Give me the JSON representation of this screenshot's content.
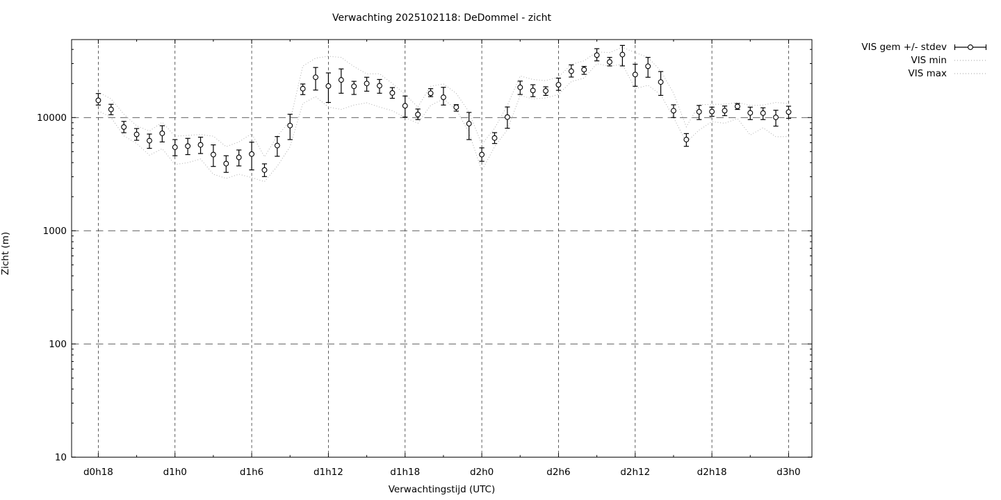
{
  "title": "Verwachting 2025102118: DeDommel - zicht",
  "axes": {
    "xlabel": "Verwachtingstijd (UTC)",
    "ylabel": "Zicht (m)"
  },
  "chart_data": {
    "type": "line",
    "subtype": "errorbars-with-min-max-envelope",
    "title": "Verwachting 2025102118: DeDommel - zicht",
    "xlabel": "Verwachtingstijd (UTC)",
    "ylabel": "Zicht (m)",
    "y_scale": "log",
    "ylim": [
      10,
      49000
    ],
    "y_major_ticks": [
      10,
      100,
      1000,
      10000
    ],
    "grid": "dashed lines at major x and y ticks",
    "legend_position": "outside-top-right",
    "legend_labels": [
      "VIS gem +/- stdev",
      "VIS min",
      "VIS max"
    ],
    "x_start": "d0h18",
    "x_step_hours": 1,
    "n_points": 55,
    "x_major_ticks": [
      {
        "pos": 0,
        "label": "d0h18"
      },
      {
        "pos": 6,
        "label": "d1h0"
      },
      {
        "pos": 12,
        "label": "d1h6"
      },
      {
        "pos": 18,
        "label": "d1h12"
      },
      {
        "pos": 24,
        "label": "d1h18"
      },
      {
        "pos": 30,
        "label": "d2h0"
      },
      {
        "pos": 36,
        "label": "d2h6"
      },
      {
        "pos": 42,
        "label": "d2h12"
      },
      {
        "pos": 48,
        "label": "d2h18"
      },
      {
        "pos": 54,
        "label": "d3h0"
      }
    ],
    "x_minor_tick_positions": [
      3,
      9,
      15,
      21,
      27,
      33,
      39,
      45,
      51
    ],
    "colors": {
      "mean_series": "#000000",
      "envelope": "#b2b2b2",
      "grid": "#2a2a2a"
    },
    "series": [
      {
        "name": "VIS gem +/- stdev",
        "type": "errorbars",
        "marker": "open-circle",
        "color": "#000000",
        "mean": [
          14200,
          11800,
          8250,
          7100,
          6250,
          7260,
          5470,
          5600,
          5740,
          4710,
          3920,
          4450,
          4760,
          3440,
          5660,
          8500,
          18000,
          22700,
          19000,
          21500,
          18900,
          20000,
          19100,
          16500,
          12700,
          10650,
          16400,
          15100,
          12350,
          8830,
          4710,
          6600,
          10100,
          18500,
          17350,
          17200,
          19500,
          25700,
          26500,
          35600,
          31000,
          36000,
          24000,
          28400,
          20600,
          11500,
          6390,
          11250,
          11300,
          11500,
          12540,
          11000,
          10950,
          10050,
          11200
        ],
        "stdev_low": [
          12900,
          10600,
          7350,
          6300,
          5350,
          6090,
          4600,
          4710,
          4810,
          3700,
          3280,
          3740,
          3450,
          3010,
          4550,
          6390,
          15950,
          17500,
          13600,
          16400,
          16000,
          17100,
          16400,
          14800,
          10100,
          9600,
          15300,
          12900,
          11400,
          6390,
          4110,
          5900,
          8050,
          16000,
          15300,
          15700,
          17400,
          22800,
          24100,
          31700,
          28600,
          28600,
          18900,
          22700,
          15700,
          10000,
          5570,
          9600,
          10260,
          10400,
          11800,
          9600,
          9600,
          8400,
          9850
        ],
        "stdev_high": [
          16300,
          13100,
          9250,
          8000,
          7150,
          8470,
          6390,
          6550,
          6710,
          5740,
          4600,
          5170,
          6060,
          3900,
          6800,
          10700,
          19800,
          27700,
          24800,
          26900,
          20900,
          22700,
          21700,
          18400,
          15500,
          11900,
          18000,
          18500,
          13000,
          11100,
          5400,
          7360,
          12400,
          21000,
          19500,
          18700,
          22300,
          29200,
          28300,
          40600,
          34000,
          43400,
          29600,
          34000,
          25500,
          12960,
          7220,
          12800,
          12360,
          12650,
          13300,
          12360,
          12200,
          11600,
          12600
        ]
      },
      {
        "name": "VIS min",
        "type": "dotted-line",
        "color": "#b2b2b2",
        "values": [
          11500,
          10000,
          6900,
          5900,
          4650,
          5300,
          3850,
          4000,
          4300,
          3160,
          2900,
          3160,
          2950,
          2720,
          3720,
          5530,
          13300,
          15300,
          12400,
          11800,
          12900,
          13500,
          12400,
          11500,
          10000,
          8900,
          12800,
          14600,
          11800,
          7360,
          3390,
          5530,
          7800,
          15700,
          14600,
          14900,
          16000,
          20800,
          22300,
          29900,
          28500,
          29500,
          18000,
          19300,
          15900,
          10000,
          6050,
          7750,
          9200,
          8900,
          9800,
          7000,
          8130,
          6760,
          6800
        ],
        "max_values": null
      },
      {
        "name": "VIS max",
        "type": "dotted-line",
        "color": "#b2b2b2",
        "values": [
          16800,
          14600,
          10700,
          8450,
          7600,
          9100,
          6850,
          6960,
          7080,
          6850,
          5530,
          6090,
          7220,
          4500,
          6900,
          9300,
          28500,
          33500,
          34800,
          34000,
          28200,
          24300,
          24400,
          20000,
          16000,
          12400,
          18900,
          19800,
          16400,
          11200,
          5800,
          8050,
          12800,
          23300,
          21700,
          21200,
          22800,
          29500,
          31700,
          38000,
          37500,
          41700,
          37500,
          34000,
          25800,
          16400,
          8290,
          12960,
          13100,
          13100,
          13600,
          12800,
          12900,
          13600,
          13300
        ]
      }
    ]
  }
}
